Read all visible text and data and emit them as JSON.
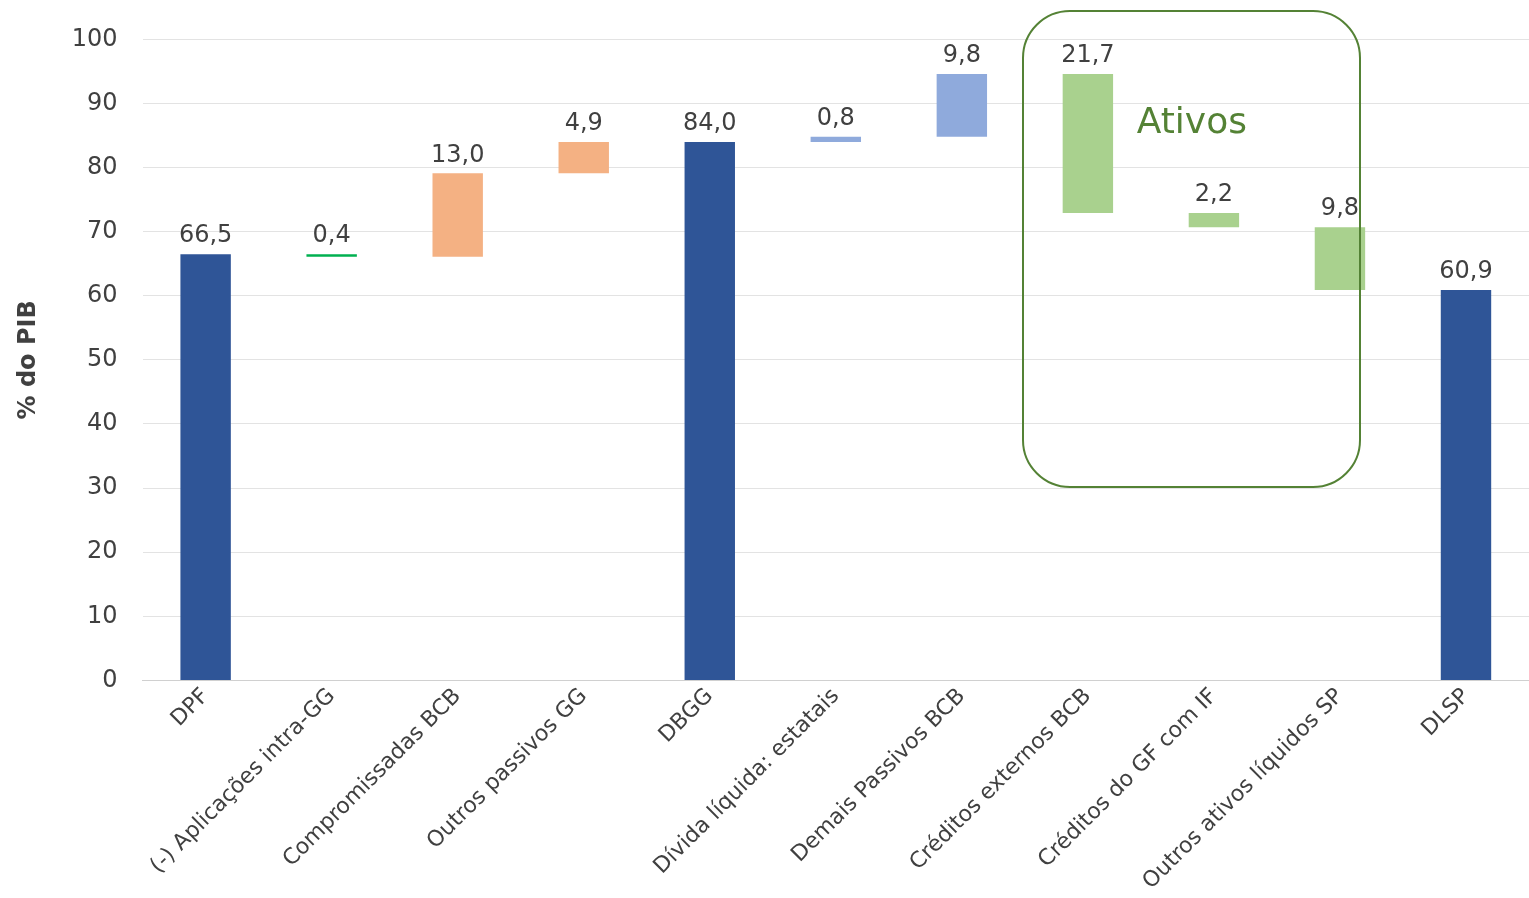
{
  "chart_data": {
    "type": "bar",
    "ylabel": "% do PIB",
    "categories": [
      "DPF",
      "(-) Aplicações intra-GG",
      "Compromissadas BCB",
      "Outros passivos GG",
      "DBGG",
      "Dívida líquida: estatais",
      "Demais Passivos BCB",
      "Créditos externos BCB",
      "Créditos do GF com IF",
      "Outros ativos líquidos SP",
      "DLSP"
    ],
    "values": [
      66.5,
      0.4,
      13.0,
      4.9,
      84.0,
      0.8,
      9.8,
      -21.7,
      -2.2,
      -9.8,
      60.9
    ],
    "base": [
      0,
      66.1,
      66.1,
      79.1,
      0,
      84.0,
      84.8,
      94.6,
      72.9,
      70.7,
      0
    ],
    "colors": [
      "#2f5597",
      "#00b050",
      "#f4b183",
      "#f4b183",
      "#2f5597",
      "#8faadc",
      "#8faadc",
      "#a9d18e",
      "#a9d18e",
      "#a9d18e",
      "#2f5597"
    ],
    "value_labels": [
      "66,5",
      "0,4",
      "13,0",
      "4,9",
      "84,0",
      "0,8",
      "9,8",
      "21,7",
      "2,2",
      "9,8",
      "60,9"
    ],
    "annotations": [
      "Ativos"
    ],
    "ylim": [
      0,
      100
    ],
    "yticks": [
      0,
      10,
      20,
      30,
      40,
      50,
      60,
      70,
      80,
      90,
      100
    ],
    "grid": "y",
    "legend": false
  }
}
